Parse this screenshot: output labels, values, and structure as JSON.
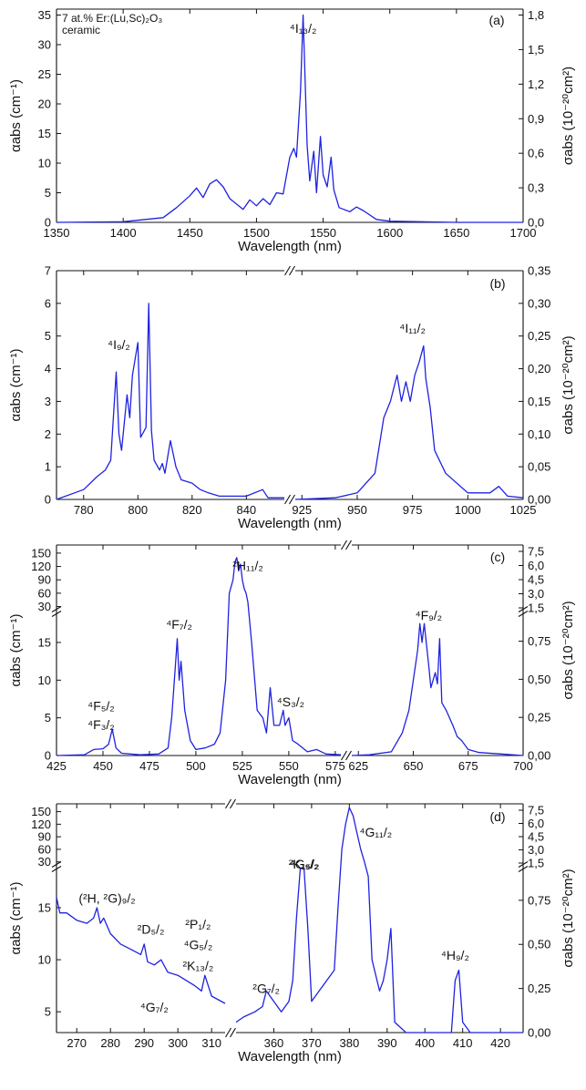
{
  "colors": {
    "spectrum": "#1f22e0",
    "axis": "#111111"
  },
  "chart_data": [
    {
      "id": "a",
      "type": "line",
      "panel_label": "(a)",
      "note_line1": "7 at.% Er:(Lu,Sc)₂O₃",
      "note_line2": "ceramic",
      "xlabel": "Wavelength (nm)",
      "ylabel_left": "αabs (cm⁻¹)",
      "ylabel_right": "σabs (10⁻²⁰cm²)",
      "xlim": [
        1350,
        1700
      ],
      "ylim": [
        0,
        36
      ],
      "xticks": [
        "1350",
        "1400",
        "1450",
        "1500",
        "1550",
        "1600",
        "1650",
        "1700"
      ],
      "yticks": [
        "0",
        "5",
        "10",
        "15",
        "20",
        "25",
        "30",
        "35"
      ],
      "yticks_right": [
        "0,0",
        "0,3",
        "0,6",
        "0,9",
        "1,2",
        "1,5",
        "1,8"
      ],
      "annotations": [
        {
          "text": "⁴I₁₃/₂",
          "x": 1535,
          "y": 32
        }
      ],
      "series": [
        {
          "x": [
            1350,
            1400,
            1430,
            1440,
            1450,
            1455,
            1460,
            1465,
            1470,
            1475,
            1480,
            1490,
            1495,
            1500,
            1505,
            1510,
            1515,
            1520,
            1525,
            1528,
            1530,
            1533,
            1535,
            1538,
            1540,
            1543,
            1545,
            1548,
            1550,
            1553,
            1556,
            1558,
            1562,
            1570,
            1575,
            1580,
            1590,
            1600,
            1650,
            1700
          ],
          "y": [
            0,
            0.1,
            0.8,
            2.5,
            4.5,
            5.8,
            4.2,
            6.5,
            7.2,
            6.0,
            4.0,
            2.2,
            3.8,
            2.8,
            4.0,
            3.0,
            5.0,
            4.8,
            11,
            12.5,
            11,
            22,
            35,
            13,
            7,
            12,
            5,
            14.5,
            8,
            6,
            11,
            5.5,
            2.5,
            1.8,
            2.6,
            2.0,
            0.5,
            0.2,
            0,
            0
          ]
        }
      ]
    },
    {
      "id": "b",
      "type": "line",
      "panel_label": "(b)",
      "xlabel": "Wavelength (nm)",
      "ylabel_left": "αabs (cm⁻¹)",
      "ylabel_right": "σabs (10⁻²⁰cm²)",
      "ylim": [
        0,
        7
      ],
      "yticks": [
        "0",
        "1",
        "2",
        "3",
        "4",
        "5",
        "6",
        "7"
      ],
      "yticks_right": [
        "0,00",
        "0,05",
        "0,10",
        "0,15",
        "0,20",
        "0,25",
        "0,30",
        "0,35"
      ],
      "segments": [
        {
          "xlim": [
            770,
            854
          ],
          "xticks": [
            "780",
            "800",
            "820",
            "840"
          ]
        },
        {
          "xlim": [
            922,
            1025
          ],
          "xticks": [
            "925",
            "950",
            "975",
            "1000",
            "1025"
          ]
        }
      ],
      "annotations": [
        {
          "text": "⁴I₉/₂",
          "x": 793,
          "y": 4.6,
          "segment": 0
        },
        {
          "text": "⁴I₁₁/₂",
          "x": 975,
          "y": 5.1,
          "segment": 1
        }
      ],
      "series": [
        {
          "segment": 0,
          "x": [
            770,
            780,
            785,
            788,
            790,
            792,
            793,
            794,
            796,
            797,
            798,
            800,
            801,
            803,
            804,
            805,
            806,
            808,
            809,
            810,
            812,
            814,
            816,
            820,
            823,
            826,
            830,
            840,
            846,
            848,
            854
          ],
          "y": [
            0,
            0.3,
            0.7,
            0.9,
            1.2,
            3.9,
            2.0,
            1.5,
            3.2,
            2.5,
            3.8,
            4.8,
            1.9,
            2.2,
            6.0,
            2.1,
            1.2,
            0.9,
            1.1,
            0.8,
            1.8,
            1.0,
            0.6,
            0.5,
            0.3,
            0.2,
            0.1,
            0.1,
            0.3,
            0.05,
            0.05
          ]
        },
        {
          "segment": 1,
          "x": [
            922,
            940,
            950,
            958,
            962,
            965,
            968,
            970,
            972,
            974,
            976,
            978,
            980,
            981,
            983,
            985,
            990,
            1000,
            1010,
            1014,
            1018,
            1025
          ],
          "y": [
            0,
            0.05,
            0.2,
            0.8,
            2.5,
            3.0,
            3.8,
            3.0,
            3.6,
            3.0,
            3.8,
            4.2,
            4.7,
            3.7,
            2.8,
            1.5,
            0.8,
            0.2,
            0.2,
            0.4,
            0.1,
            0.05
          ]
        }
      ]
    },
    {
      "id": "c",
      "type": "line",
      "panel_label": "(c)",
      "xlabel": "Wavelength (nm)",
      "ylabel_left": "αabs (cm⁻¹)",
      "ylabel_right": "σabs (10⁻²⁰cm²)",
      "yticks_lower": [
        "0",
        "5",
        "10",
        "15"
      ],
      "yticks_upper": [
        "30",
        "60",
        "90",
        "120",
        "150"
      ],
      "yticks_right_lower": [
        "0,00",
        "0,25",
        "0,50",
        "0,75"
      ],
      "yticks_right_upper": [
        "1,5",
        "3,0",
        "4,5",
        "6,0",
        "7,5"
      ],
      "segments": [
        {
          "xlim": [
            425,
            578
          ],
          "xticks": [
            "425",
            "450",
            "475",
            "500",
            "525",
            "550",
            "575"
          ]
        },
        {
          "xlim": [
            622,
            700
          ],
          "xticks": [
            "625",
            "650",
            "675",
            "700"
          ]
        }
      ],
      "annotations": [
        {
          "text": "⁴F₅/₂",
          "x": 449,
          "y": 6.0,
          "segment": 0
        },
        {
          "text": "⁴F₃/₂",
          "x": 449,
          "y": 3.5,
          "segment": 0
        },
        {
          "text": "⁴F₇/₂",
          "x": 491,
          "y": 16.8,
          "segment": 0
        },
        {
          "text": "²H₁₁/₂",
          "x": 528,
          "y": 112,
          "segment": 0
        },
        {
          "text": "⁴S₃/₂",
          "x": 551,
          "y": 6.5,
          "segment": 0
        },
        {
          "text": "⁴F₉/₂",
          "x": 657,
          "y": 18,
          "segment": 1
        }
      ],
      "series": [
        {
          "segment": 0,
          "x": [
            425,
            440,
            445,
            450,
            453,
            455,
            457,
            460,
            470,
            480,
            485,
            487,
            489,
            490,
            491,
            492,
            494,
            497,
            500,
            505,
            510,
            513,
            516,
            518,
            520,
            521,
            522,
            523,
            524,
            525,
            526,
            527,
            528,
            530,
            533,
            536,
            538,
            540,
            542,
            545,
            547,
            548,
            550,
            552,
            555,
            560,
            565,
            570,
            578
          ],
          "y": [
            0,
            0.1,
            0.8,
            0.9,
            1.5,
            3.5,
            1.0,
            0.3,
            0.1,
            0.2,
            1.0,
            5,
            12,
            15.5,
            10,
            12.5,
            6,
            2,
            0.8,
            1.0,
            1.5,
            3,
            10,
            60,
            90,
            130,
            140,
            110,
            125,
            90,
            70,
            60,
            40,
            15,
            6,
            5,
            3,
            9,
            4,
            4,
            6,
            4,
            5,
            2,
            1.5,
            0.5,
            0.8,
            0.2,
            0.1
          ]
        },
        {
          "segment": 1,
          "x": [
            622,
            630,
            640,
            645,
            648,
            650,
            652,
            653,
            654,
            655,
            657,
            658,
            660,
            661,
            662,
            663,
            665,
            668,
            670,
            672,
            675,
            680,
            690,
            700
          ],
          "y": [
            0,
            0.1,
            0.5,
            3,
            6,
            10,
            14,
            17.5,
            15,
            17.5,
            12,
            9,
            11,
            9.5,
            15.5,
            7,
            6,
            4,
            2.5,
            2,
            0.8,
            0.4,
            0.2,
            0
          ]
        }
      ]
    },
    {
      "id": "d",
      "type": "line",
      "panel_label": "(d)",
      "xlabel": "Wavelength (nm)",
      "ylabel_left": "αabs (cm⁻¹)",
      "ylabel_right": "σabs (10⁻²⁰cm²)",
      "yticks_lower": [
        "5",
        "10",
        "15"
      ],
      "yticks_upper": [
        "30",
        "60",
        "90",
        "120",
        "150"
      ],
      "yticks_right_lower": [
        "0,00",
        "0,25",
        "0,50",
        "0,75"
      ],
      "yticks_right_upper": [
        "1,5",
        "3,0",
        "4,5",
        "6,0",
        "7,5"
      ],
      "segments": [
        {
          "xlim": [
            264,
            314
          ],
          "xticks": [
            "270",
            "280",
            "290",
            "300",
            "310"
          ]
        },
        {
          "xlim": [
            350,
            426
          ],
          "xticks": [
            "360",
            "370",
            "380",
            "390",
            "400",
            "410",
            "420"
          ]
        }
      ],
      "annotations": [
        {
          "text": "(²H, ²G)₉/₂",
          "x": 279,
          "y": 15.5,
          "segment": 0
        },
        {
          "text": "²D₅/₂",
          "x": 292,
          "y": 12.5,
          "segment": 0
        },
        {
          "text": "⁴G₇/₂",
          "x": 293,
          "y": 5.0,
          "segment": 0
        },
        {
          "text": "²P₁/₂",
          "x": 306,
          "y": 13.0,
          "segment": 0
        },
        {
          "text": "⁴G₅/₂",
          "x": 306,
          "y": 11.0,
          "segment": 0
        },
        {
          "text": "²K₁₃/₂",
          "x": 306,
          "y": 9.0,
          "segment": 0
        },
        {
          "text": "²G₇/₂",
          "x": 358,
          "y": 6.8,
          "segment": 1
        },
        {
          "text": "⁴G₉/₂",
          "x": 368,
          "y": 24,
          "segment": 1
        },
        {
          "text": "²K₁₅/₂",
          "x": 368,
          "y": 19,
          "segment": 1
        },
        {
          "text": "⁴G₁₁/₂",
          "x": 387,
          "y": 90,
          "segment": 1
        },
        {
          "text": "⁴H₉/₂",
          "x": 408,
          "y": 10,
          "segment": 1
        }
      ],
      "series": [
        {
          "segment": 0,
          "x": [
            264,
            265,
            267,
            270,
            273,
            275,
            276,
            277,
            278,
            280,
            283,
            286,
            289,
            290,
            291,
            293,
            295,
            297,
            300,
            305,
            307,
            308,
            310,
            314
          ],
          "y": [
            16,
            14.5,
            14.5,
            13.8,
            13.5,
            14,
            15,
            13.5,
            14,
            12.5,
            11.5,
            11,
            10.5,
            11.5,
            9.8,
            9.5,
            10,
            8.8,
            8.5,
            7.5,
            7,
            8.5,
            6.5,
            5.8
          ]
        },
        {
          "segment": 1,
          "x": [
            350,
            352,
            355,
            357,
            358,
            360,
            362,
            364,
            365,
            366,
            367,
            368,
            369,
            370,
            372,
            374,
            376,
            377,
            378,
            379,
            380,
            381,
            382,
            383,
            384,
            385,
            386,
            388,
            389,
            390,
            391,
            392,
            395,
            400,
            405,
            407,
            408,
            409,
            410,
            412,
            415,
            420,
            426
          ],
          "y": [
            4,
            4.5,
            5,
            5.5,
            7,
            6,
            5,
            6,
            8,
            14,
            19,
            21,
            13,
            6,
            7,
            8,
            9,
            15,
            60,
            120,
            160,
            140,
            100,
            60,
            30,
            18,
            10,
            7,
            8,
            10,
            13,
            4,
            1,
            0.5,
            1,
            3,
            8,
            9,
            4,
            1,
            0.5,
            0.3,
            0.2
          ]
        }
      ]
    }
  ]
}
